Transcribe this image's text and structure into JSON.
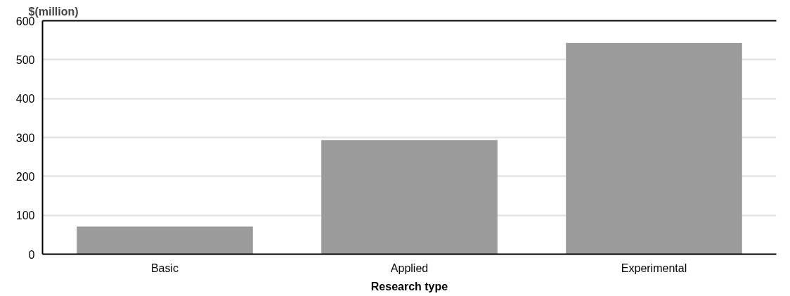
{
  "chart_data": {
    "type": "bar",
    "ylabel": "$(million)",
    "xlabel": "Research type",
    "categories": [
      "Basic",
      "Applied",
      "Experimental"
    ],
    "values": [
      71,
      293,
      543
    ],
    "color": "#9b9b9b",
    "ylim": [
      0,
      600
    ],
    "yticks": [
      0,
      100,
      200,
      300,
      400,
      500,
      600
    ],
    "grid": "y"
  }
}
